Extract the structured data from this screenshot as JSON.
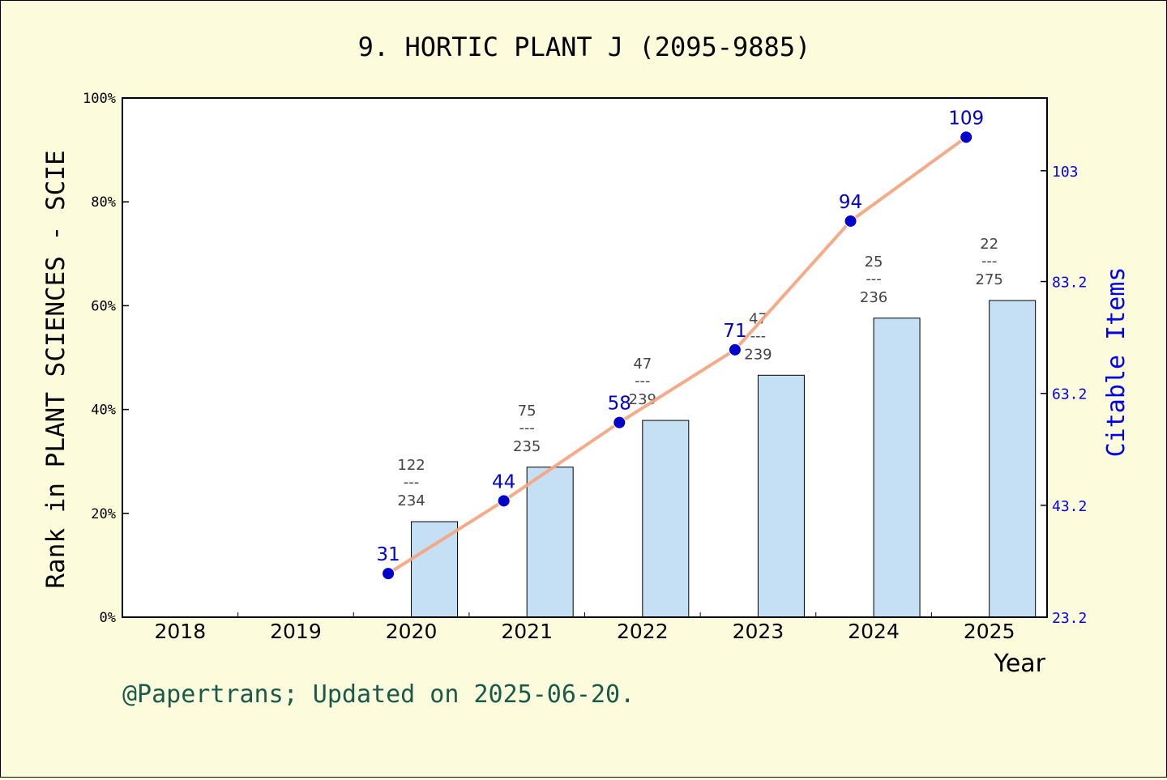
{
  "chart_data": {
    "type": "bar",
    "title": "9. HORTIC PLANT J (2095-9885)",
    "xlabel": "Year",
    "ylabel": "Rank in PLANT SCIENCES - SCIE",
    "y2label": "Citable Items",
    "categories": [
      "2018",
      "2019",
      "2020",
      "2021",
      "2022",
      "2023",
      "2024",
      "2025"
    ],
    "ylim": [
      0,
      100
    ],
    "y_ticks": [
      "0%",
      "20%",
      "40%",
      "60%",
      "80%",
      "100%"
    ],
    "y2lim": [
      23.2,
      116
    ],
    "y2_ticks": [
      "23.2",
      "43.2",
      "63.2",
      "83.2",
      "103"
    ],
    "series": [
      {
        "kind": "bar",
        "values": [
          null,
          null,
          18.4,
          28.9,
          37.9,
          46.6,
          57.6,
          61.0
        ],
        "rank_top": [
          "",
          "",
          "122",
          "75",
          "47",
          "47",
          "25",
          "22"
        ],
        "rank_bottom": [
          "",
          "",
          "234",
          "235",
          "239",
          "239",
          "236",
          "275"
        ],
        "separator": "---",
        "color": "#c5dff5"
      },
      {
        "kind": "line",
        "axis": "right",
        "values": [
          null,
          null,
          31,
          44,
          58,
          71,
          94,
          109
        ],
        "labels": [
          "",
          "",
          "31",
          "44",
          "58",
          "71",
          "94",
          "109"
        ],
        "line_color": "#f4a582",
        "marker_color": "#0000cc"
      }
    ],
    "grid": false,
    "footer": "@Papertrans; Updated on 2025-06-20."
  }
}
